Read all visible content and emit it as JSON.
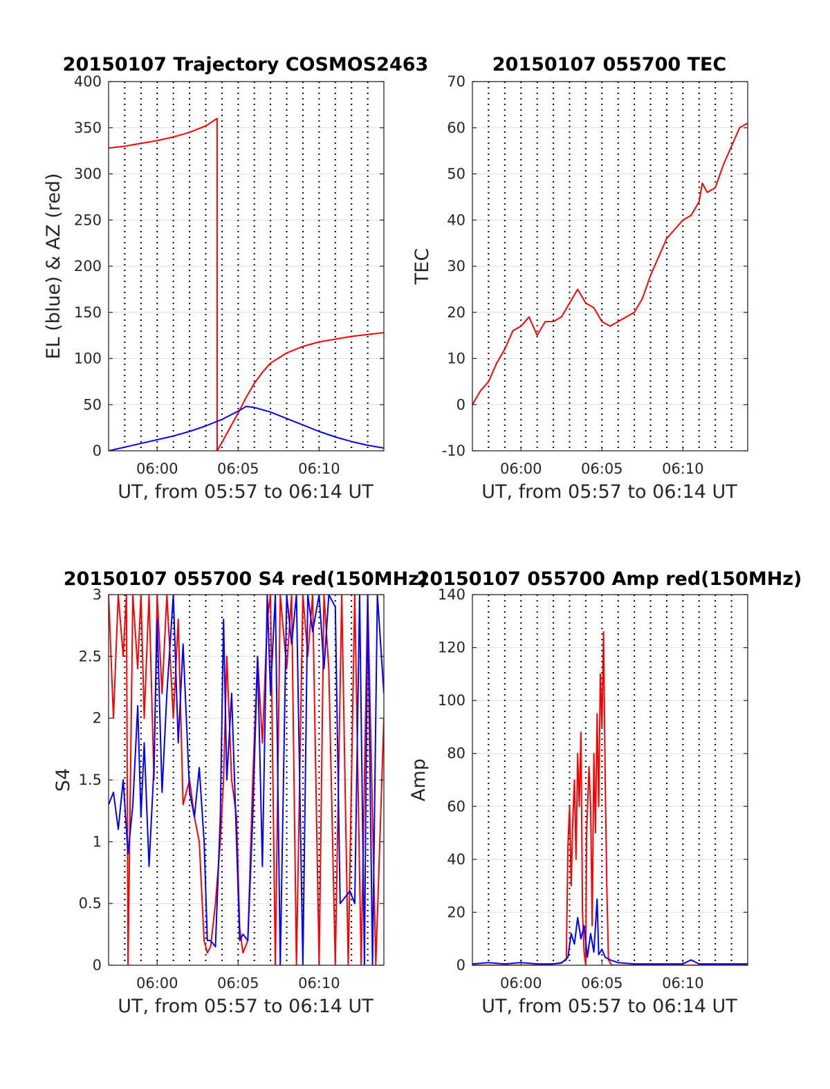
{
  "chart_data": [
    {
      "type": "line",
      "title": "20150107 Trajectory COSMOS2463",
      "xlabel": "UT, from 05:57 to 06:14 UT",
      "ylabel": "EL (blue) & AZ (red)",
      "xlim_minutes": [
        0,
        17
      ],
      "ylim": [
        0,
        400
      ],
      "yticks": [
        "0",
        "50",
        "100",
        "150",
        "200",
        "250",
        "300",
        "350",
        "400"
      ],
      "xticks": [
        {
          "value": 3,
          "label": "06:00"
        },
        {
          "value": 8,
          "label": "06:05"
        },
        {
          "value": 13,
          "label": "06:10"
        }
      ],
      "dotted_gridlines_minutes": [
        1,
        2,
        3,
        4,
        5,
        6,
        7,
        8,
        9,
        10,
        11,
        12,
        13,
        14,
        15,
        16
      ],
      "series": [
        {
          "color": "#ff0000",
          "x": [
            0,
            1,
            2,
            3,
            4,
            5,
            6,
            6.7,
            6.7,
            7,
            7.5,
            8,
            8.5,
            9,
            9.5,
            10,
            11,
            12,
            13,
            14,
            15,
            16,
            17
          ],
          "y": [
            328,
            330,
            333,
            336,
            340,
            345,
            352,
            360,
            0,
            9,
            25,
            41,
            58,
            73,
            85,
            95,
            106,
            113,
            118,
            121,
            124,
            126,
            128
          ]
        },
        {
          "color": "#0000ff",
          "x": [
            0,
            1,
            2,
            3,
            4,
            5,
            6,
            7,
            8,
            8.5,
            9,
            10,
            11,
            12,
            13,
            14,
            15,
            16,
            17
          ],
          "y": [
            0,
            4,
            8,
            12,
            16,
            21,
            27,
            34,
            43,
            48,
            47,
            42,
            35,
            28,
            21,
            15,
            10,
            6,
            3
          ]
        }
      ]
    },
    {
      "type": "line",
      "title": "20150107 055700 TEC",
      "xlabel": "UT, from 05:57 to 06:14 UT",
      "ylabel": "TEC",
      "xlim_minutes": [
        0,
        17
      ],
      "ylim": [
        -10,
        70
      ],
      "yticks": [
        "-10",
        "0",
        "10",
        "20",
        "30",
        "40",
        "50",
        "60",
        "70"
      ],
      "xticks": [
        {
          "value": 3,
          "label": "06:00"
        },
        {
          "value": 8,
          "label": "06:05"
        },
        {
          "value": 13,
          "label": "06:10"
        }
      ],
      "dotted_gridlines_minutes": [
        1,
        2,
        3,
        4,
        5,
        6,
        7,
        8,
        9,
        10,
        11,
        12,
        13,
        14,
        15,
        16
      ],
      "series": [
        {
          "color": "#ff0000",
          "x": [
            0,
            0.5,
            1,
            1.5,
            2,
            2.5,
            3,
            3.5,
            4,
            4.5,
            5,
            5.5,
            6,
            6.5,
            7,
            7.5,
            8,
            8.5,
            9,
            9.5,
            10,
            10.5,
            11,
            11.5,
            12,
            12.5,
            13,
            13.5,
            14,
            14.2,
            14.5,
            15,
            15.5,
            16,
            16.5,
            17
          ],
          "y": [
            0,
            3,
            5,
            9,
            12,
            16,
            17,
            19,
            15,
            18,
            18,
            19,
            22,
            25,
            22,
            21,
            18,
            17,
            18,
            19,
            20,
            23,
            28,
            32,
            36,
            38,
            40,
            41,
            44,
            48,
            46,
            47,
            52,
            56,
            60,
            61
          ]
        }
      ]
    },
    {
      "type": "line",
      "title": "20150107 055700 S4 red(150MHz)",
      "xlabel": "UT, from 05:57 to 06:14 UT",
      "ylabel": "S4",
      "xlim_minutes": [
        0,
        17
      ],
      "ylim": [
        0,
        3
      ],
      "yticks": [
        "0",
        "0.5",
        "1",
        "1.5",
        "2",
        "2.5",
        "3"
      ],
      "xticks": [
        {
          "value": 3,
          "label": "06:00"
        },
        {
          "value": 8,
          "label": "06:05"
        },
        {
          "value": 13,
          "label": "06:10"
        }
      ],
      "dotted_gridlines_minutes": [
        1,
        2,
        3,
        4,
        5,
        6,
        7,
        8,
        9,
        10,
        11,
        12,
        13,
        14,
        15,
        16
      ],
      "series": [
        {
          "color": "#ff0000",
          "x": [
            0,
            0.3,
            0.6,
            0.9,
            1.1,
            1.2,
            1.5,
            1.8,
            2,
            2.2,
            2.5,
            2.8,
            3,
            3.3,
            3.6,
            4,
            4.3,
            4.6,
            5,
            5.3,
            5.6,
            5.9,
            6.1,
            6.3,
            6.6,
            6.9,
            7.1,
            7.3,
            7.6,
            7.9,
            8.1,
            8.3,
            8.6,
            8.9,
            9.2,
            9.5,
            9.8,
            10,
            10.3,
            10.6,
            11,
            11.3,
            11.6,
            12,
            12.3,
            12.6,
            13,
            13.3,
            13.6,
            14,
            14.4,
            14.8,
            15.2,
            15.6,
            16,
            16.5,
            17
          ],
          "y": [
            3,
            2,
            3,
            2.5,
            3,
            0,
            3,
            2.4,
            3,
            2,
            3,
            1.5,
            3,
            2.2,
            3,
            2,
            2.8,
            1.3,
            1.5,
            1.2,
            1,
            0.2,
            0.1,
            0.15,
            0.5,
            1,
            1.5,
            2.5,
            1.5,
            1.2,
            0.3,
            0.1,
            0.2,
            1.5,
            2.5,
            1.8,
            2.8,
            3,
            0,
            3,
            2.4,
            3,
            0,
            3,
            2.5,
            3,
            0,
            3,
            2.4,
            0,
            3,
            0,
            3,
            0,
            3,
            0,
            2
          ]
        },
        {
          "color": "#0000ff",
          "x": [
            0,
            0.3,
            0.6,
            0.9,
            1.2,
            1.5,
            1.8,
            2,
            2.2,
            2.5,
            2.8,
            3,
            3.3,
            3.6,
            4,
            4.3,
            4.6,
            5,
            5.3,
            5.6,
            5.9,
            6.1,
            6.3,
            6.6,
            6.9,
            7.1,
            7.3,
            7.6,
            7.9,
            8.1,
            8.3,
            8.6,
            8.9,
            9.2,
            9.5,
            9.8,
            10,
            10.3,
            10.6,
            11,
            11.3,
            11.6,
            12,
            12.3,
            12.6,
            13,
            13.3,
            13.6,
            14,
            14.3,
            14.6,
            14.9,
            15.2,
            15.5,
            15.8,
            16,
            16.3,
            16.6,
            17
          ],
          "y": [
            1.3,
            1.4,
            1.1,
            1.5,
            0.9,
            1.3,
            2.1,
            1.2,
            1.8,
            0.8,
            1.6,
            2.8,
            1.4,
            2.2,
            3,
            1.8,
            2.6,
            1.4,
            1.2,
            1.6,
            1,
            0.2,
            0.2,
            0.15,
            1.2,
            2.8,
            1.5,
            2.2,
            1,
            0.2,
            0.25,
            0.2,
            1.2,
            2.5,
            0.8,
            3,
            2.2,
            3,
            0,
            3,
            2.6,
            3,
            0,
            3,
            2.7,
            3,
            2.4,
            3,
            2.9,
            0.5,
            0.55,
            0.6,
            0.5,
            3,
            0,
            3,
            0,
            3,
            2.2
          ]
        }
      ]
    },
    {
      "type": "line",
      "title": "20150107 055700 Amp red(150MHz)",
      "xlabel": "UT, from 05:57 to 06:14 UT",
      "ylabel": "Amp",
      "xlim_minutes": [
        0,
        17
      ],
      "ylim": [
        0,
        140
      ],
      "yticks": [
        "0",
        "20",
        "40",
        "60",
        "80",
        "100",
        "120",
        "140"
      ],
      "xticks": [
        {
          "value": 3,
          "label": "06:00"
        },
        {
          "value": 8,
          "label": "06:05"
        },
        {
          "value": 13,
          "label": "06:10"
        }
      ],
      "dotted_gridlines_minutes": [
        1,
        2,
        3,
        4,
        5,
        6,
        7,
        8,
        9,
        10,
        11,
        12,
        13,
        14,
        15,
        16
      ],
      "series": [
        {
          "color": "#ff0000",
          "x": [
            0,
            4.5,
            5,
            5.5,
            5.8,
            5.9,
            6.0,
            6.1,
            6.2,
            6.3,
            6.4,
            6.5,
            6.6,
            6.7,
            6.8,
            6.9,
            7.0,
            7.05,
            7.2,
            7.3,
            7.4,
            7.5,
            7.6,
            7.7,
            7.8,
            7.9,
            8.0,
            8.1,
            8.2,
            8.3,
            8.4,
            8.6,
            9,
            17
          ],
          "y": [
            0,
            0,
            0.5,
            1,
            2,
            45,
            60,
            30,
            55,
            70,
            40,
            80,
            60,
            88,
            20,
            5,
            0,
            50,
            75,
            60,
            15,
            80,
            50,
            95,
            60,
            110,
            90,
            126,
            70,
            30,
            2,
            0,
            0,
            0
          ]
        },
        {
          "color": "#0000ff",
          "x": [
            0,
            1,
            2,
            3,
            4,
            5,
            5.5,
            5.9,
            6.1,
            6.3,
            6.5,
            6.7,
            6.9,
            7.1,
            7.3,
            7.5,
            7.7,
            7.8,
            8,
            8.2,
            8.5,
            9,
            10,
            11,
            12,
            13,
            13.5,
            14,
            14.5,
            15,
            16,
            17
          ],
          "y": [
            0.5,
            1,
            0.5,
            1,
            0.5,
            0.5,
            0.8,
            3,
            12,
            8,
            18,
            10,
            15,
            3,
            12,
            5,
            25,
            4,
            6,
            3,
            2,
            1,
            0.5,
            0.5,
            0.5,
            0.5,
            2,
            0.5,
            0.5,
            0.5,
            0.5,
            0.5
          ]
        }
      ]
    }
  ]
}
